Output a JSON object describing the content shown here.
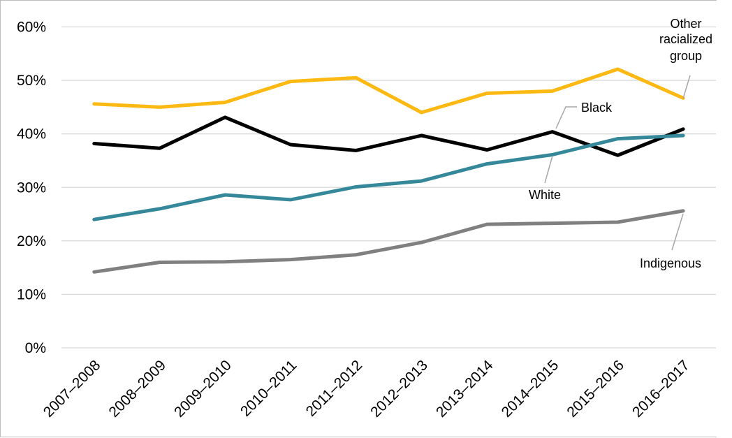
{
  "chart_data": {
    "type": "line",
    "title": "",
    "xlabel": "",
    "ylabel": "",
    "ylim": [
      0,
      60
    ],
    "y_ticks": [
      "0%",
      "10%",
      "20%",
      "30%",
      "40%",
      "50%",
      "60%"
    ],
    "grid": true,
    "legend": "none (direct series labels)",
    "categories": [
      "2007–2008",
      "2008–2009",
      "2009–2010",
      "2010–2011",
      "2011–2012",
      "2012–2013",
      "2013–2014",
      "2014–2015",
      "2015–2016",
      "2016–2017"
    ],
    "series": [
      {
        "name": "Other racialized group",
        "label_lines": [
          "Other",
          "racialized",
          "group"
        ],
        "color": "#FDB913",
        "values": [
          45.6,
          45.0,
          45.9,
          49.8,
          50.5,
          44.0,
          47.6,
          48.0,
          52.1,
          46.7
        ]
      },
      {
        "name": "Black",
        "label_lines": [
          "Black"
        ],
        "color": "#000000",
        "values": [
          38.2,
          37.3,
          43.1,
          38.0,
          36.9,
          39.7,
          37.0,
          40.4,
          36.0,
          40.9
        ]
      },
      {
        "name": "White",
        "label_lines": [
          "White"
        ],
        "color": "#358899",
        "values": [
          24.0,
          26.0,
          28.6,
          27.7,
          30.1,
          31.2,
          34.4,
          36.1,
          39.1,
          39.7
        ]
      },
      {
        "name": "Indigenous",
        "label_lines": [
          "Indigenous"
        ],
        "color": "#808080",
        "values": [
          14.2,
          16.0,
          16.1,
          16.5,
          17.4,
          19.7,
          23.1,
          23.3,
          23.5,
          25.6
        ]
      }
    ]
  }
}
